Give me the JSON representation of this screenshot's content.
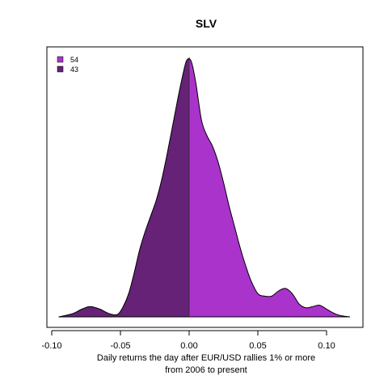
{
  "chart_data": {
    "type": "area",
    "title": "SLV",
    "xlabel_lines": [
      "Daily returns the day after EUR/USD rallies 1% or more",
      "from 2006 to present"
    ],
    "ylabel": "",
    "xlim": [
      -0.1,
      0.12
    ],
    "xticks": [
      -0.1,
      -0.05,
      0.0,
      0.05,
      0.1
    ],
    "xtick_labels": [
      "-0.10",
      "-0.05",
      "0.00",
      "0.05",
      "0.10"
    ],
    "yaxis_visible": false,
    "grid": false,
    "legend_position": "top-left",
    "split_at": 0.0,
    "series": [
      {
        "name": "54",
        "region": "positive",
        "color": "#aa33cc"
      },
      {
        "name": "43",
        "region": "negative",
        "color": "#662277"
      }
    ],
    "density": {
      "x": [
        -0.095,
        -0.085,
        -0.078,
        -0.072,
        -0.065,
        -0.058,
        -0.052,
        -0.048,
        -0.044,
        -0.04,
        -0.036,
        -0.032,
        -0.028,
        -0.024,
        -0.02,
        -0.016,
        -0.012,
        -0.008,
        -0.004,
        -0.002,
        0.0,
        0.002,
        0.005,
        0.009,
        0.013,
        0.017,
        0.021,
        0.025,
        0.029,
        0.033,
        0.037,
        0.041,
        0.045,
        0.05,
        0.055,
        0.06,
        0.065,
        0.07,
        0.075,
        0.08,
        0.085,
        0.09,
        0.095,
        0.1,
        0.105,
        0.11,
        0.117
      ],
      "y": [
        0.0,
        0.012,
        0.03,
        0.04,
        0.03,
        0.012,
        0.01,
        0.04,
        0.09,
        0.17,
        0.26,
        0.33,
        0.39,
        0.45,
        0.53,
        0.63,
        0.74,
        0.85,
        0.95,
        0.99,
        1.0,
        0.98,
        0.9,
        0.76,
        0.7,
        0.66,
        0.6,
        0.52,
        0.43,
        0.35,
        0.27,
        0.2,
        0.14,
        0.09,
        0.08,
        0.08,
        0.1,
        0.11,
        0.09,
        0.05,
        0.035,
        0.04,
        0.045,
        0.03,
        0.015,
        0.005,
        0.0
      ],
      "ylim": [
        0,
        1.03
      ]
    }
  }
}
